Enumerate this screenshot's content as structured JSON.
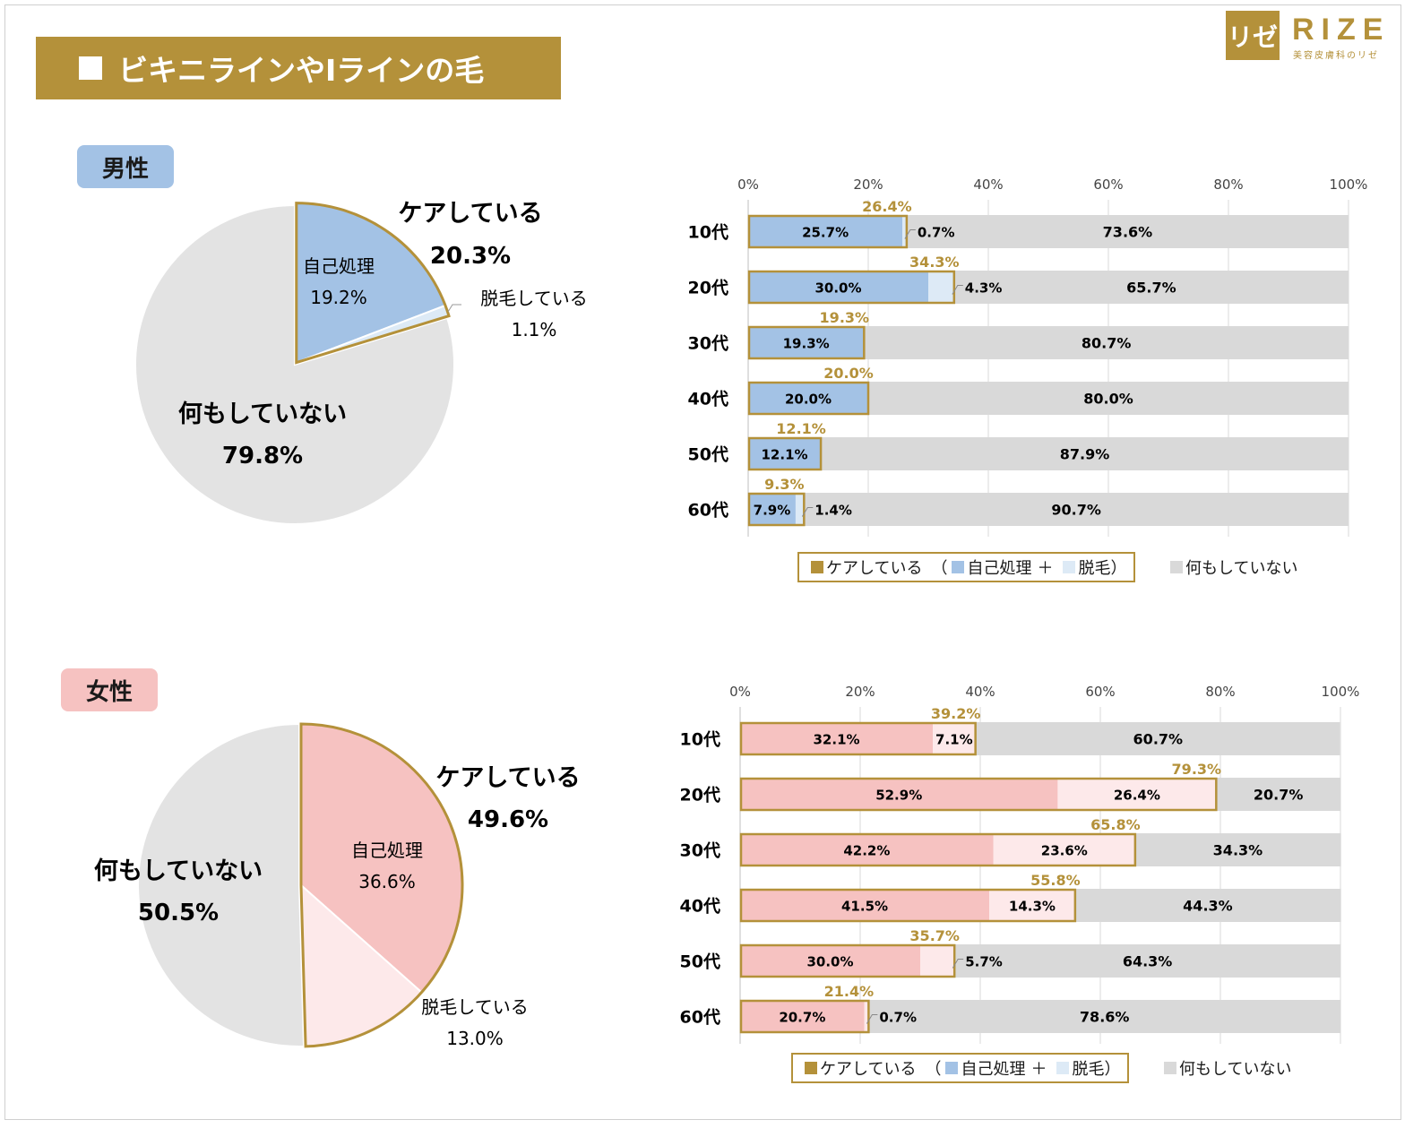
{
  "title": "ビキニラインやIラインの毛",
  "logo": {
    "mark": "リゼ",
    "word": "RIZE",
    "sub": "美容皮膚科のリゼ"
  },
  "colors": {
    "gold": "#b4913a",
    "male_self": "#a3c2e5",
    "male_removal": "#ddeaf6",
    "female_self": "#f6c2c1",
    "female_removal": "#fde9ea",
    "none": "#d9d9d9",
    "pie_none": "#e3e3e3"
  },
  "legend": {
    "care": "ケアしている",
    "open": "（",
    "self": "自己処理",
    "plus": "＋",
    "removal": "脱毛",
    "close": "）",
    "none": "何もしていない"
  },
  "chart_data": [
    {
      "type": "pie",
      "group": "男性",
      "slices": [
        {
          "label": "自己処理",
          "value": 19.2
        },
        {
          "label": "脱毛している",
          "value": 1.1
        },
        {
          "label": "何もしていない",
          "value": 79.8
        }
      ],
      "care_label": "ケアしている",
      "care_value": "20.3%",
      "slice_labels": {
        "self": "自己処理",
        "self_value": "19.2%",
        "removal": "脱毛している",
        "removal_value": "1.1%",
        "none": "何もしていない",
        "none_value": "79.8%"
      }
    },
    {
      "type": "bar",
      "group": "男性",
      "orientation": "horizontal-stacked",
      "xlim": [
        0,
        100
      ],
      "ticks": [
        "0%",
        "20%",
        "40%",
        "60%",
        "80%",
        "100%"
      ],
      "categories": [
        "10代",
        "20代",
        "30代",
        "40代",
        "50代",
        "60代"
      ],
      "series": [
        {
          "name": "自己処理",
          "values": [
            25.7,
            30.0,
            19.3,
            20.0,
            12.1,
            7.9
          ]
        },
        {
          "name": "脱毛",
          "values": [
            0.7,
            4.3,
            0,
            0,
            0,
            1.4
          ]
        },
        {
          "name": "何もしていない",
          "values": [
            73.6,
            65.7,
            80.7,
            80.0,
            87.9,
            90.7
          ]
        }
      ],
      "care_totals": [
        26.4,
        34.3,
        19.3,
        20.0,
        12.1,
        9.3
      ]
    },
    {
      "type": "pie",
      "group": "女性",
      "slices": [
        {
          "label": "自己処理",
          "value": 36.6
        },
        {
          "label": "脱毛している",
          "value": 13.0
        },
        {
          "label": "何もしていない",
          "value": 50.5
        }
      ],
      "care_label": "ケアしている",
      "care_value": "49.6%",
      "slice_labels": {
        "self": "自己処理",
        "self_value": "36.6%",
        "removal": "脱毛している",
        "removal_value": "13.0%",
        "none": "何もしていない",
        "none_value": "50.5%"
      }
    },
    {
      "type": "bar",
      "group": "女性",
      "orientation": "horizontal-stacked",
      "xlim": [
        0,
        100
      ],
      "ticks": [
        "0%",
        "20%",
        "40%",
        "60%",
        "80%",
        "100%"
      ],
      "categories": [
        "10代",
        "20代",
        "30代",
        "40代",
        "50代",
        "60代"
      ],
      "series": [
        {
          "name": "自己処理",
          "values": [
            32.1,
            52.9,
            42.2,
            41.5,
            30.0,
            20.7
          ]
        },
        {
          "name": "脱毛",
          "values": [
            7.1,
            26.4,
            23.6,
            14.3,
            5.7,
            0.7
          ]
        },
        {
          "name": "何もしていない",
          "values": [
            60.7,
            20.7,
            34.3,
            44.3,
            64.3,
            78.6
          ]
        }
      ],
      "care_totals": [
        39.2,
        79.3,
        65.8,
        55.8,
        35.7,
        21.4
      ]
    }
  ]
}
